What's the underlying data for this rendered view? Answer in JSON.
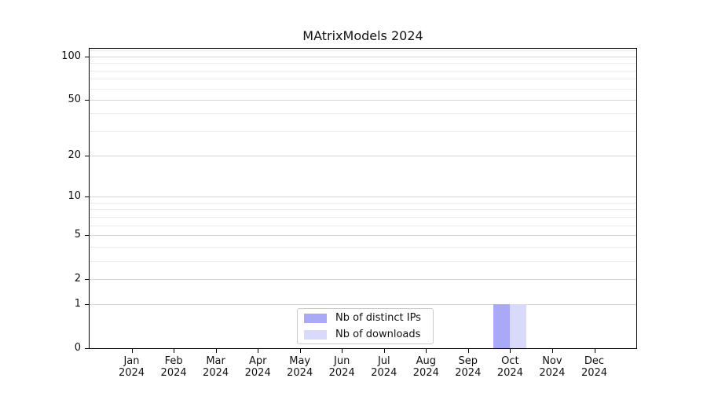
{
  "chart_data": {
    "type": "bar",
    "title": "MAtrixModels 2024",
    "categories": [
      "Jan 2024",
      "Feb 2024",
      "Mar 2024",
      "Apr 2024",
      "May 2024",
      "Jun 2024",
      "Jul 2024",
      "Aug 2024",
      "Sep 2024",
      "Oct 2024",
      "Nov 2024",
      "Dec 2024"
    ],
    "series": [
      {
        "name": "Nb of distinct IPs",
        "color": "#a9a9f8",
        "values": [
          0,
          0,
          0,
          0,
          0,
          0,
          0,
          0,
          0,
          1,
          0,
          0
        ]
      },
      {
        "name": "Nb of downloads",
        "color": "#d9d9f9",
        "values": [
          0,
          0,
          0,
          0,
          0,
          0,
          0,
          0,
          0,
          1,
          0,
          0
        ]
      }
    ],
    "yscale": "log1p",
    "ylim": [
      0,
      113.3
    ],
    "y_major_ticks": [
      0,
      1,
      2,
      5,
      10,
      20,
      50,
      100
    ],
    "y_minor_ticks": [
      3,
      4,
      6,
      7,
      8,
      9,
      30,
      40,
      60,
      70,
      80,
      90,
      110
    ],
    "grid": true,
    "legend_position": "lower center",
    "colors": {
      "spine": "#000000",
      "grid_major": "#d4d4d4",
      "grid_minor": "#ebebeb",
      "legend_border": "#cccccc",
      "background": "#ffffff"
    }
  }
}
